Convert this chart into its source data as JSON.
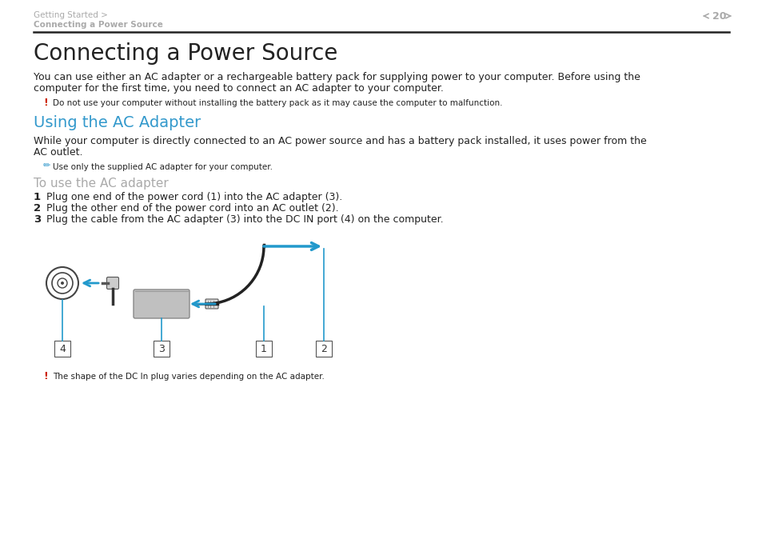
{
  "bg_color": "#ffffff",
  "header_line1": "Getting Started >",
  "header_line2": "Connecting a Power Source",
  "header_page": "20",
  "header_gray": "#aaaaaa",
  "divider_color": "#222222",
  "title": "Connecting a Power Source",
  "body1": "You can use either an AC adapter or a rechargeable battery pack for supplying power to your computer. Before using the computer for the first time, you need to connect an AC adapter to your computer.",
  "warn1": "Do not use your computer without installing the battery pack as it may cause the computer to malfunction.",
  "section_title": "Using the AC Adapter",
  "section_color": "#3399cc",
  "body2a": "While your computer is directly connected to an AC power source and has a battery pack installed, it uses power from the",
  "body2b": "AC outlet.",
  "note": "Use only the supplied AC adapter for your computer.",
  "sub_title": "To use the AC adapter",
  "sub_color": "#aaaaaa",
  "step1": "Plug one end of the power cord (1) into the AC adapter (3).",
  "step2": "Plug the other end of the power cord into an AC outlet (2).",
  "step3": "Plug the cable from the AC adapter (3) into the DC IN port (4) on the computer.",
  "warn2": "The shape of the DC In plug varies depending on the AC adapter.",
  "red": "#cc2200",
  "blue": "#2299cc",
  "dark": "#222222",
  "gray": "#999999"
}
